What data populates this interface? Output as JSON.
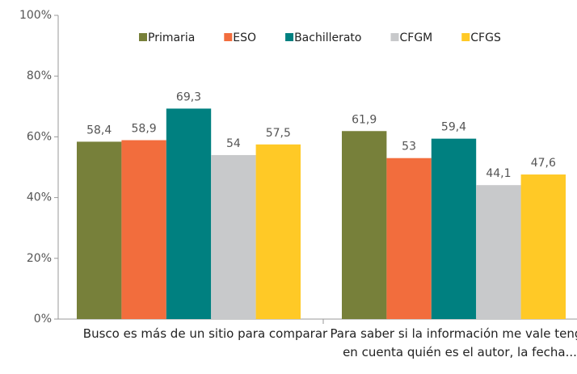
{
  "chart_data": {
    "type": "bar",
    "categories": [
      "Busco es más de un sitio para comparar",
      "Para saber si la información me vale tengo en cuenta quién es el autor, la fecha..."
    ],
    "series": [
      {
        "name": "Primaria",
        "color": "#77803a",
        "values": [
          58.4,
          61.9
        ],
        "value_labels": [
          "58,4",
          "61,9"
        ]
      },
      {
        "name": "ESO",
        "color": "#f26d3d",
        "values": [
          58.9,
          53
        ],
        "value_labels": [
          "58,9",
          "53"
        ]
      },
      {
        "name": "Bachillerato",
        "color": "#008080",
        "values": [
          69.3,
          59.4
        ],
        "value_labels": [
          "69,3",
          "59,4"
        ]
      },
      {
        "name": "CFGM",
        "color": "#c8c9cb",
        "values": [
          54,
          44.1
        ],
        "value_labels": [
          "54",
          "44,1"
        ]
      },
      {
        "name": "CFGS",
        "color": "#ffc926",
        "values": [
          57.5,
          47.6
        ],
        "value_labels": [
          "57,5",
          "47,6"
        ]
      }
    ],
    "ylim": [
      0,
      100
    ],
    "yticks": [
      {
        "value": 0,
        "label": "0%"
      },
      {
        "value": 20,
        "label": "20%"
      },
      {
        "value": 40,
        "label": "40%"
      },
      {
        "value": 60,
        "label": "60%"
      },
      {
        "value": 80,
        "label": "80%"
      },
      {
        "value": 100,
        "label": "100%"
      }
    ],
    "legend": "top",
    "grid": false
  }
}
